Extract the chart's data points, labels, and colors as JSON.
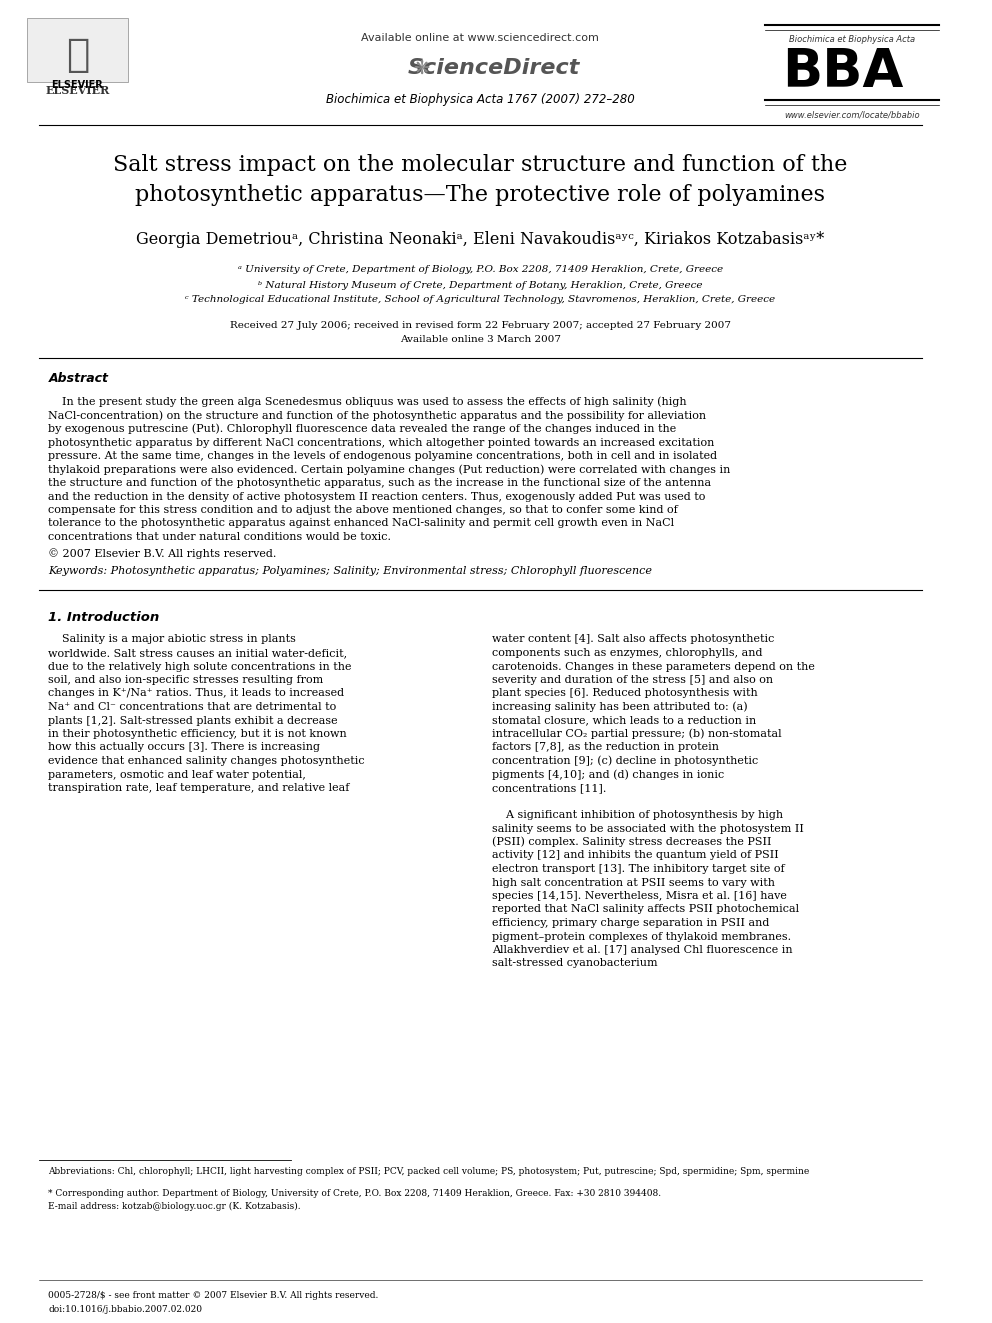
{
  "bg_color": "#ffffff",
  "title_line1": "Salt stress impact on the molecular structure and function of the",
  "title_line2": "photosynthetic apparatus—The protective role of polyamines",
  "authors": "Georgia Demetriouᵃ, Christina Neonakiᵃ, Eleni Navakoudisᵃʸᶜ, Kiriakos Kotzabasisᵃʸ*",
  "affil_a": "ᵃ University of Crete, Department of Biology, P.O. Box 2208, 71409 Heraklion, Crete, Greece",
  "affil_b": "ᵇ Natural History Museum of Crete, Department of Botany, Heraklion, Crete, Greece",
  "affil_c": "ᶜ Technological Educational Institute, School of Agricultural Technology, Stavromenos, Heraklion, Crete, Greece",
  "received": "Received 27 July 2006; received in revised form 22 February 2007; accepted 27 February 2007",
  "available": "Available online 3 March 2007",
  "journal": "Biochimica et Biophysica Acta 1767 (2007) 272–280",
  "available_online": "Available online at www.sciencedirect.com",
  "elsevier_url": "www.elsevier.com/locate/bbabio",
  "abstract_title": "Abstract",
  "abstract_text": "    In the present study the green alga Scenedesmus obliquus was used to assess the effects of high salinity (high NaCl-concentration) on the structure and function of the photosynthetic apparatus and the possibility for alleviation by exogenous putrescine (Put). Chlorophyll fluorescence data revealed the range of the changes induced in the photosynthetic apparatus by different NaCl concentrations, which altogether pointed towards an increased excitation pressure. At the same time, changes in the levels of endogenous polyamine concentrations, both in cell and in isolated thylakoid preparations were also evidenced. Certain polyamine changes (Put reduction) were correlated with changes in the structure and function of the photosynthetic apparatus, such as the increase in the functional size of the antenna and the reduction in the density of active photosystem II reaction centers. Thus, exogenously added Put was used to compensate for this stress condition and to adjust the above mentioned changes, so that to confer some kind of tolerance to the photosynthetic apparatus against enhanced NaCl-salinity and permit cell growth even in NaCl concentrations that under natural conditions would be toxic.",
  "copyright": "© 2007 Elsevier B.V. All rights reserved.",
  "keywords": "Keywords: Photosynthetic apparatus; Polyamines; Salinity; Environmental stress; Chlorophyll fluorescence",
  "section1_title": "1. Introduction",
  "intro_col1_p1": "    Salinity is a major abiotic stress in plants worldwide. Salt stress causes an initial water-deficit, due to the relatively high solute concentrations in the soil, and also ion-specific stresses resulting from changes in K⁺/Na⁺ ratios. Thus, it leads to increased Na⁺ and Cl⁻ concentrations that are detrimental to plants [1,2]. Salt-stressed plants exhibit a decrease in their photosynthetic efficiency, but it is not known how this actually occurs [3]. There is increasing evidence that enhanced salinity changes photosynthetic parameters, osmotic and leaf water potential, transpiration rate, leaf temperature, and relative leaf",
  "intro_col2_p1": "water content [4]. Salt also affects photosynthetic components such as enzymes, chlorophylls, and carotenoids. Changes in these parameters depend on the severity and duration of the stress [5] and also on plant species [6]. Reduced photosynthesis with increasing salinity has been attributed to: (a) stomatal closure, which leads to a reduction in intracellular CO₂ partial pressure; (b) non-stomatal factors [7,8], as the reduction in protein concentration [9]; (c) decline in photosynthetic pigments [4,10]; and (d) changes in ionic concentrations [11].",
  "intro_col2_p2": "    A significant inhibition of photosynthesis by high salinity seems to be associated with the photosystem II (PSII) complex. Salinity stress decreases the PSII activity [12] and inhibits the quantum yield of PSII electron transport [13]. The inhibitory target site of high salt concentration at PSII seems to vary with species [14,15]. Nevertheless, Misra et al. [16] have reported that NaCl salinity affects PSII photochemical efficiency, primary charge separation in PSII and pigment–protein complexes of thylakoid membranes. Allakhverdiev et al. [17] analysed Chl fluorescence in salt-stressed cyanobacterium",
  "footnote_abbrev": "Abbreviations: Chl, chlorophyll; LHCII, light harvesting complex of PSII; PCV, packed cell volume; PS, photosystem; Put, putrescine; Spd, spermidine; Spm, spermine",
  "footnote_corr": "* Corresponding author. Department of Biology, University of Crete, P.O. Box 2208, 71409 Heraklion, Greece. Fax: +30 2810 394408.",
  "footnote_email": "E-mail address: kotzab@biology.uoc.gr (K. Kotzabasis).",
  "footer_issn": "0005-2728/$ - see front matter © 2007 Elsevier B.V. All rights reserved.",
  "footer_doi": "doi:10.1016/j.bbabio.2007.02.020"
}
